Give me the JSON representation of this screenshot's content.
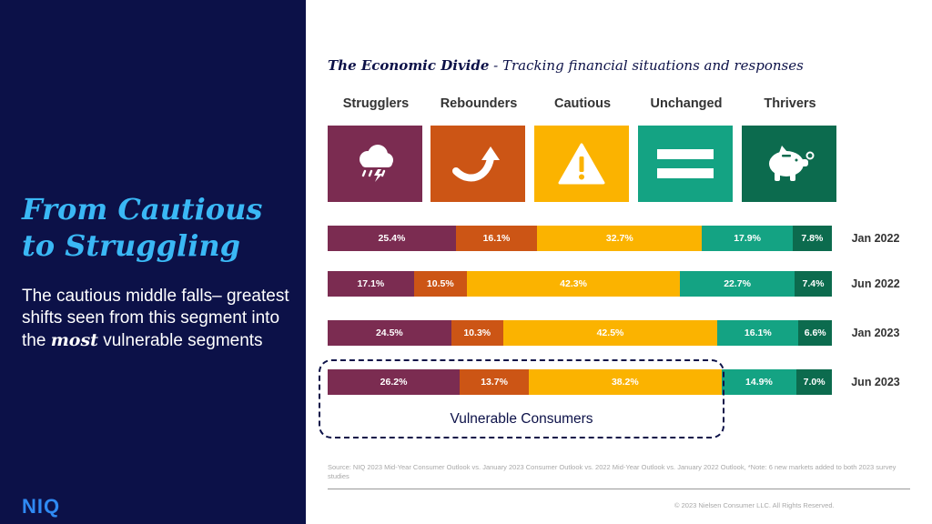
{
  "left": {
    "headline_line1": "From Cautious",
    "headline_line2": "to Struggling",
    "body_pre": "The cautious middle falls– greatest shifts seen from this segment into the ",
    "body_emph": "most",
    "body_post": " vulnerable segments",
    "logo": "NIQ"
  },
  "header": {
    "title_bold": "The Economic Divide",
    "title_rest": " - Tracking financial situations and responses"
  },
  "segments": [
    {
      "label": "Strugglers",
      "color": "#7b2c51",
      "icon": "storm-cloud-icon"
    },
    {
      "label": "Rebounders",
      "color": "#cc5515",
      "icon": "rebound-arrow-icon"
    },
    {
      "label": "Cautious",
      "color": "#fbb300",
      "icon": "warning-icon"
    },
    {
      "label": "Unchanged",
      "color": "#14a383",
      "icon": "equals-icon"
    },
    {
      "label": "Thrivers",
      "color": "#0c6b4e",
      "icon": "piggy-bank-icon"
    }
  ],
  "chart_data": {
    "type": "bar",
    "orientation": "horizontal",
    "stacked": true,
    "categories": [
      "Jan 2022",
      "Jun 2022",
      "Jan 2023",
      "Jun 2023"
    ],
    "series": [
      {
        "name": "Strugglers",
        "values": [
          25.4,
          17.1,
          24.5,
          26.2
        ],
        "labels": [
          "25.4%",
          "17.1%",
          "24.5%",
          "26.2%"
        ]
      },
      {
        "name": "Rebounders",
        "values": [
          16.1,
          10.5,
          10.3,
          13.7
        ],
        "labels": [
          "16.1%",
          "10.5%",
          "10.3%",
          "13.7%"
        ]
      },
      {
        "name": "Cautious",
        "values": [
          32.7,
          42.3,
          42.5,
          38.2
        ],
        "labels": [
          "32.7%",
          "42.3%",
          "42.5%",
          "38.2%"
        ]
      },
      {
        "name": "Unchanged",
        "values": [
          17.9,
          22.7,
          16.1,
          14.9
        ],
        "labels": [
          "17.9%",
          "22.7%",
          "16.1%",
          "14.9%"
        ]
      },
      {
        "name": "Thrivers",
        "values": [
          7.8,
          7.4,
          6.6,
          7.0
        ],
        "labels": [
          "7.8%",
          "7.4%",
          "6.6%",
          "7.0%"
        ]
      }
    ],
    "annotation": "Vulnerable Consumers"
  },
  "footer": {
    "source": "Source: NIQ 2023 Mid-Year Consumer Outlook vs. January 2023 Consumer Outlook vs. 2022 Mid-Year Outlook vs. January 2022 Outlook, *Note: 6 new markets added to both 2023 survey studies",
    "copyright": "© 2023 Nielsen Consumer LLC. All Rights Reserved."
  }
}
